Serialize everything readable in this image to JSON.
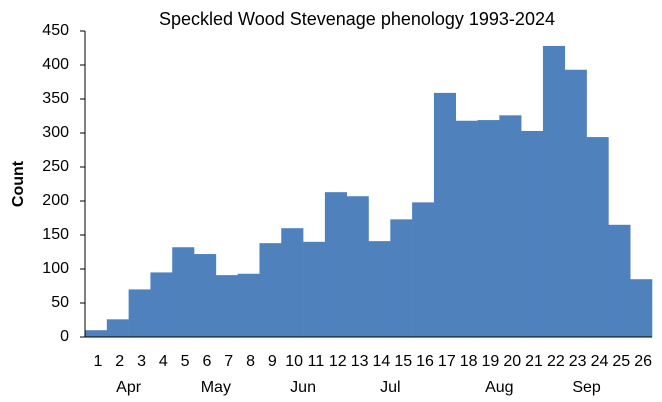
{
  "chart_data": {
    "type": "bar",
    "title": "Speckled Wood Stevenage phenology 1993-2024",
    "y_label": "Count",
    "categories": [
      "1",
      "2",
      "3",
      "4",
      "5",
      "6",
      "7",
      "8",
      "9",
      "10",
      "11",
      "12",
      "13",
      "14",
      "15",
      "16",
      "17",
      "18",
      "19",
      "20",
      "21",
      "22",
      "23",
      "24",
      "25",
      "26"
    ],
    "month_labels": [
      null,
      "Apr",
      null,
      null,
      null,
      "May",
      null,
      null,
      null,
      "Jun",
      null,
      null,
      null,
      "Jul",
      null,
      null,
      null,
      null,
      "Aug",
      null,
      null,
      null,
      "Sep",
      null,
      null,
      null
    ],
    "values": [
      10,
      26,
      70,
      95,
      132,
      122,
      91,
      93,
      138,
      160,
      140,
      213,
      207,
      141,
      173,
      198,
      359,
      318,
      319,
      326,
      303,
      428,
      393,
      294,
      165,
      85
    ],
    "color": "#4f81bd",
    "ylim": [
      0,
      450
    ],
    "yticks": [
      0,
      50,
      100,
      150,
      200,
      250,
      300,
      350,
      400,
      450
    ],
    "grid": false
  }
}
